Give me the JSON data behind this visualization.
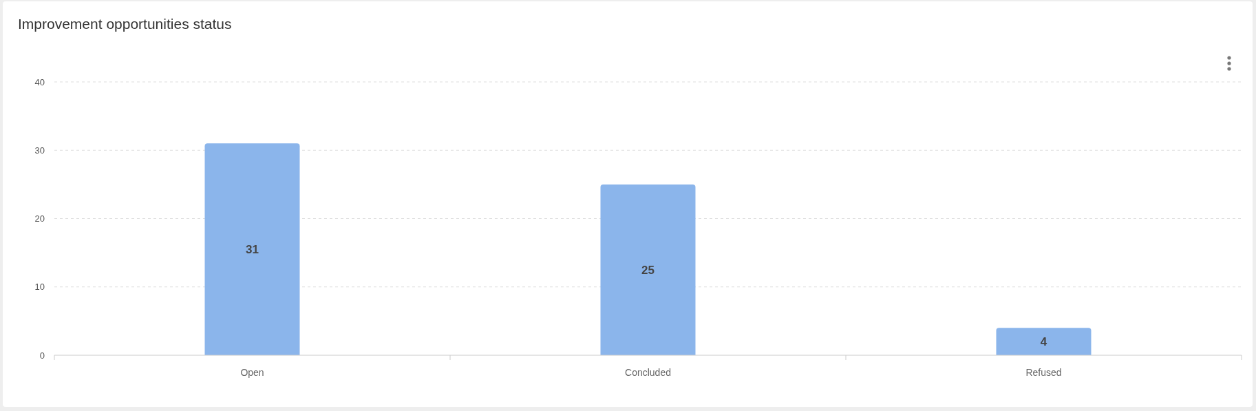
{
  "chart_data": {
    "type": "bar",
    "title": "Improvement opportunities status",
    "categories": [
      "Open",
      "Concluded",
      "Refused"
    ],
    "values": [
      31,
      25,
      4
    ],
    "color": "#8bb5eb",
    "ylim": [
      0,
      40
    ],
    "yticks": [
      0,
      10,
      20,
      30,
      40
    ],
    "grid": "y",
    "data_labels": true
  }
}
